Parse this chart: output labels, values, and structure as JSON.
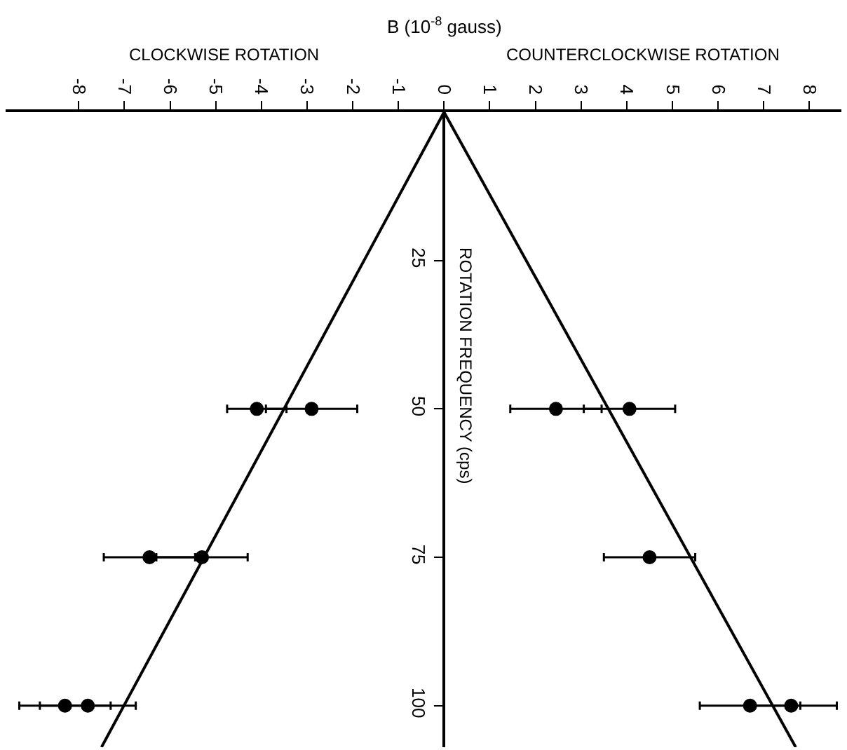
{
  "chart_data": {
    "type": "scatter",
    "xlabel": "B (10$^{-8}$ gauss)",
    "ylabel": "ROTATION FREQUENCY (cps)",
    "annotations": [
      "CLOCKWISE ROTATION",
      "COUNTERCLOCKWISE ROTATION"
    ],
    "xlim": [
      -9.6,
      8.7
    ],
    "xticks": [
      -8,
      -7,
      -6,
      -5,
      -4,
      -3,
      -2,
      -1,
      0,
      1,
      2,
      3,
      4,
      5,
      6,
      7,
      8
    ],
    "ylim": [
      107,
      0
    ],
    "yticks": [
      25,
      50,
      75,
      100
    ],
    "series": [
      {
        "type": "line",
        "marker": "none",
        "color": "#000000",
        "x": [
          0,
          -7.5
        ],
        "values": [
          0,
          107
        ]
      },
      {
        "type": "line",
        "marker": "none",
        "color": "#000000",
        "x": [
          0,
          7.7
        ],
        "values": [
          0,
          107
        ]
      },
      {
        "color": "#000000",
        "x": [
          -4.1,
          -6.45,
          -8.3,
          2.45,
          6.7
        ],
        "values": [
          50,
          75,
          100,
          50,
          100
        ],
        "xerrors": [
          0.65,
          1.0,
          1.0,
          1.0,
          1.1
        ]
      },
      {
        "color": "#000000",
        "x": [
          -2.9,
          -5.3,
          -7.8,
          4.06,
          4.5,
          7.6
        ],
        "values": [
          50,
          75,
          100,
          50,
          75,
          100
        ],
        "xerrors": [
          1.0,
          1.0,
          1.05,
          1.0,
          1.0,
          1.0
        ]
      }
    ],
    "marker": "circle",
    "grid": false
  }
}
